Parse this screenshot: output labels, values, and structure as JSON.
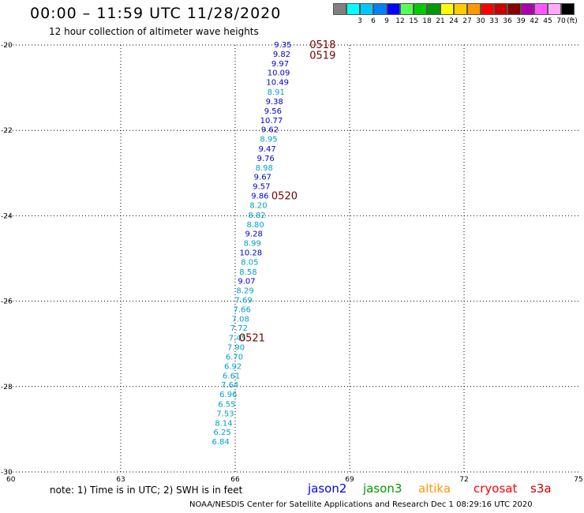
{
  "header": {
    "title": "00:00 – 11:59 UTC 11/28/2020",
    "subtitle": "12 hour collection of altimeter wave heights"
  },
  "legend": {
    "unit_label": "(ft)",
    "bins": [
      {
        "label": "",
        "color": "#808080"
      },
      {
        "label": "3",
        "color": "#00ffff"
      },
      {
        "label": "6",
        "color": "#00c8ff"
      },
      {
        "label": "9",
        "color": "#0080ff"
      },
      {
        "label": "12",
        "color": "#0000ff"
      },
      {
        "label": "15",
        "color": "#55ff55"
      },
      {
        "label": "18",
        "color": "#00cc00"
      },
      {
        "label": "21",
        "color": "#009900"
      },
      {
        "label": "24",
        "color": "#ffff00"
      },
      {
        "label": "27",
        "color": "#ffcc00"
      },
      {
        "label": "30",
        "color": "#ff9900"
      },
      {
        "label": "33",
        "color": "#ff0000"
      },
      {
        "label": "36",
        "color": "#cc0000"
      },
      {
        "label": "39",
        "color": "#880000"
      },
      {
        "label": "42",
        "color": "#aa00aa"
      },
      {
        "label": "45",
        "color": "#ff55ff"
      },
      {
        "label": "70",
        "color": "#ffaaff"
      },
      {
        "label": "",
        "color": "#000000"
      }
    ]
  },
  "map": {
    "lat_labels": [
      "-20",
      "-22",
      "-24",
      "-26",
      "-28",
      "-30"
    ],
    "lat_values": [
      -20,
      -22,
      -24,
      -26,
      -28,
      -30
    ],
    "lon_labels": [
      "60",
      "63",
      "66",
      "69",
      "72",
      "75"
    ],
    "lon_values": [
      60,
      63,
      66,
      69,
      72,
      75
    ],
    "lat_range": [
      -30,
      -20
    ],
    "lon_range": [
      60,
      75
    ],
    "grid": true
  },
  "observations": [
    {
      "lon": 67.25,
      "lat": -20.0,
      "value": "9.35",
      "color": "#0000cc"
    },
    {
      "lon": 67.22,
      "lat": -20.22,
      "value": "9.82",
      "color": "#0000cc"
    },
    {
      "lon": 67.18,
      "lat": -20.44,
      "value": "9.97",
      "color": "#0000cc"
    },
    {
      "lon": 67.14,
      "lat": -20.66,
      "value": "10.09",
      "color": "#0000cc"
    },
    {
      "lon": 67.11,
      "lat": -20.88,
      "value": "10.49",
      "color": "#0000cc"
    },
    {
      "lon": 67.07,
      "lat": -21.11,
      "value": "8.91",
      "color": "#009fcc"
    },
    {
      "lon": 67.03,
      "lat": -21.33,
      "value": "9.38",
      "color": "#0000cc"
    },
    {
      "lon": 66.99,
      "lat": -21.55,
      "value": "9.56",
      "color": "#0000cc"
    },
    {
      "lon": 66.95,
      "lat": -21.77,
      "value": "10.77",
      "color": "#0000cc"
    },
    {
      "lon": 66.91,
      "lat": -21.99,
      "value": "9.62",
      "color": "#0000cc"
    },
    {
      "lon": 66.88,
      "lat": -22.21,
      "value": "8.95",
      "color": "#009fcc"
    },
    {
      "lon": 66.84,
      "lat": -22.44,
      "value": "9.47",
      "color": "#0000cc"
    },
    {
      "lon": 66.8,
      "lat": -22.66,
      "value": "9.76",
      "color": "#0000cc"
    },
    {
      "lon": 66.76,
      "lat": -22.88,
      "value": "8.98",
      "color": "#009fcc"
    },
    {
      "lon": 66.72,
      "lat": -23.1,
      "value": "9.67",
      "color": "#0000cc"
    },
    {
      "lon": 66.69,
      "lat": -23.32,
      "value": "9.57",
      "color": "#0000cc"
    },
    {
      "lon": 66.65,
      "lat": -23.54,
      "value": "9.86",
      "color": "#0000cc"
    },
    {
      "lon": 66.61,
      "lat": -23.76,
      "value": "8.20",
      "color": "#009fcc"
    },
    {
      "lon": 66.57,
      "lat": -23.99,
      "value": "8.82",
      "color": "#009fcc"
    },
    {
      "lon": 66.53,
      "lat": -24.21,
      "value": "8.80",
      "color": "#009fcc"
    },
    {
      "lon": 66.49,
      "lat": -24.43,
      "value": "9.28",
      "color": "#0000cc"
    },
    {
      "lon": 66.45,
      "lat": -24.65,
      "value": "8.99",
      "color": "#009fcc"
    },
    {
      "lon": 66.41,
      "lat": -24.87,
      "value": "10.28",
      "color": "#0000cc"
    },
    {
      "lon": 66.38,
      "lat": -25.09,
      "value": "8.05",
      "color": "#009fcc"
    },
    {
      "lon": 66.34,
      "lat": -25.32,
      "value": "8.58",
      "color": "#009fcc"
    },
    {
      "lon": 66.3,
      "lat": -25.54,
      "value": "9.07",
      "color": "#0000cc"
    },
    {
      "lon": 66.26,
      "lat": -25.76,
      "value": "8.29",
      "color": "#009fcc"
    },
    {
      "lon": 66.22,
      "lat": -25.98,
      "value": "7.69",
      "color": "#009fcc"
    },
    {
      "lon": 66.18,
      "lat": -26.2,
      "value": "7.66",
      "color": "#009fcc"
    },
    {
      "lon": 66.14,
      "lat": -26.42,
      "value": "7.08",
      "color": "#009fcc"
    },
    {
      "lon": 66.1,
      "lat": -26.64,
      "value": "7.72",
      "color": "#009fcc"
    },
    {
      "lon": 66.06,
      "lat": -26.87,
      "value": "7.45",
      "color": "#009fcc"
    },
    {
      "lon": 66.02,
      "lat": -27.09,
      "value": "7.90",
      "color": "#009fcc"
    },
    {
      "lon": 65.98,
      "lat": -27.31,
      "value": "6.70",
      "color": "#009fcc"
    },
    {
      "lon": 65.94,
      "lat": -27.53,
      "value": "6.92",
      "color": "#009fcc"
    },
    {
      "lon": 65.9,
      "lat": -27.75,
      "value": "6.61",
      "color": "#009fcc"
    },
    {
      "lon": 65.86,
      "lat": -27.97,
      "value": "7.64",
      "color": "#009fcc"
    },
    {
      "lon": 65.82,
      "lat": -28.19,
      "value": "6.96",
      "color": "#009fcc"
    },
    {
      "lon": 65.78,
      "lat": -28.42,
      "value": "6.55",
      "color": "#009fcc"
    },
    {
      "lon": 65.74,
      "lat": -28.64,
      "value": "7.53",
      "color": "#009fcc"
    },
    {
      "lon": 65.7,
      "lat": -28.86,
      "value": "8.14",
      "color": "#009fcc"
    },
    {
      "lon": 65.66,
      "lat": -29.08,
      "value": "6.25",
      "color": "#009fcc"
    },
    {
      "lon": 65.62,
      "lat": -29.3,
      "value": "6.84",
      "color": "#009fcc"
    }
  ],
  "pass_times": [
    {
      "label": "0518",
      "lon": 67.95,
      "lat": -20.0
    },
    {
      "label": "0519",
      "lon": 67.95,
      "lat": -20.25
    },
    {
      "label": "0520",
      "lon": 66.95,
      "lat": -23.54
    },
    {
      "label": "0521",
      "lon": 66.1,
      "lat": -26.87
    }
  ],
  "footer": {
    "note": "note:  1) Time is in UTC;  2) SWH is in feet",
    "satellites": [
      {
        "name": "jason2",
        "color": "#0000ff"
      },
      {
        "name": "jason3",
        "color": "#009900"
      },
      {
        "name": "altika",
        "color": "#ff9900"
      },
      {
        "name": "cryosat",
        "color": "#ff0000"
      },
      {
        "name": "s3a",
        "color": "#cc0000"
      }
    ],
    "credit": "NOAA/NESDIS Center for Satellite Applications and Research     Dec  1 08:29:16 UTC 2020"
  }
}
